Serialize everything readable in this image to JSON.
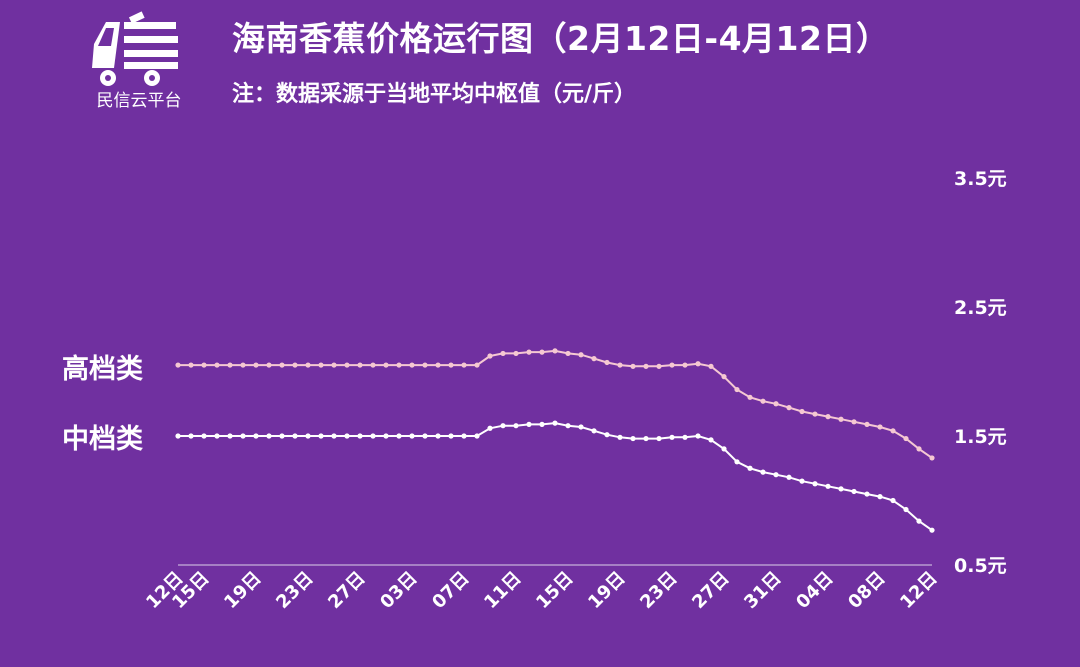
{
  "brand": {
    "name": "民信云平台",
    "logo_icon": "truck-logo-icon"
  },
  "header": {
    "title": "海南香蕉价格运行图（2月12日-4月12日）",
    "subtitle": "注：数据采源于当地平均中枢值（元/斤）"
  },
  "colors": {
    "background": "#7030a0",
    "high_line": "#f5c8d2",
    "mid_line": "#ffffff",
    "text": "#ffffff",
    "axis": "#b89ad0"
  },
  "chart_data": {
    "type": "line",
    "title": "海南香蕉价格运行图（2月12日-4月12日）",
    "unit": "元/斤",
    "ylim": [
      0.5,
      3.5
    ],
    "y_ticks": [
      {
        "value": 0.5,
        "label": "0.5元"
      },
      {
        "value": 1.5,
        "label": "1.5元"
      },
      {
        "value": 2.5,
        "label": "2.5元"
      },
      {
        "value": 3.5,
        "label": "3.5元"
      }
    ],
    "x_ticks": [
      {
        "index": 0,
        "label": "12日"
      },
      {
        "index": 2,
        "label": "15日"
      },
      {
        "index": 6,
        "label": "19日"
      },
      {
        "index": 10,
        "label": "23日"
      },
      {
        "index": 14,
        "label": "27日"
      },
      {
        "index": 18,
        "label": "03日"
      },
      {
        "index": 22,
        "label": "07日"
      },
      {
        "index": 26,
        "label": "11日"
      },
      {
        "index": 30,
        "label": "15日"
      },
      {
        "index": 34,
        "label": "19日"
      },
      {
        "index": 38,
        "label": "23日"
      },
      {
        "index": 42,
        "label": "27日"
      },
      {
        "index": 46,
        "label": "31日"
      },
      {
        "index": 50,
        "label": "04日"
      },
      {
        "index": 54,
        "label": "08日"
      },
      {
        "index": 58,
        "label": "12日"
      }
    ],
    "grid": false,
    "series": [
      {
        "name": "高档类",
        "values": [
          2.05,
          2.05,
          2.05,
          2.05,
          2.05,
          2.05,
          2.05,
          2.05,
          2.05,
          2.05,
          2.05,
          2.05,
          2.05,
          2.05,
          2.05,
          2.05,
          2.05,
          2.05,
          2.05,
          2.05,
          2.05,
          2.05,
          2.05,
          2.05,
          2.12,
          2.14,
          2.14,
          2.15,
          2.15,
          2.16,
          2.14,
          2.13,
          2.1,
          2.07,
          2.05,
          2.04,
          2.04,
          2.04,
          2.05,
          2.05,
          2.06,
          2.04,
          1.96,
          1.86,
          1.8,
          1.77,
          1.75,
          1.72,
          1.69,
          1.67,
          1.65,
          1.63,
          1.61,
          1.59,
          1.57,
          1.54,
          1.48,
          1.4,
          1.33
        ]
      },
      {
        "name": "中档类",
        "values": [
          1.5,
          1.5,
          1.5,
          1.5,
          1.5,
          1.5,
          1.5,
          1.5,
          1.5,
          1.5,
          1.5,
          1.5,
          1.5,
          1.5,
          1.5,
          1.5,
          1.5,
          1.5,
          1.5,
          1.5,
          1.5,
          1.5,
          1.5,
          1.5,
          1.56,
          1.58,
          1.58,
          1.59,
          1.59,
          1.6,
          1.58,
          1.57,
          1.54,
          1.51,
          1.49,
          1.48,
          1.48,
          1.48,
          1.49,
          1.49,
          1.5,
          1.47,
          1.4,
          1.3,
          1.25,
          1.22,
          1.2,
          1.18,
          1.15,
          1.13,
          1.11,
          1.09,
          1.07,
          1.05,
          1.03,
          1,
          0.93,
          0.84,
          0.77
        ]
      }
    ]
  }
}
